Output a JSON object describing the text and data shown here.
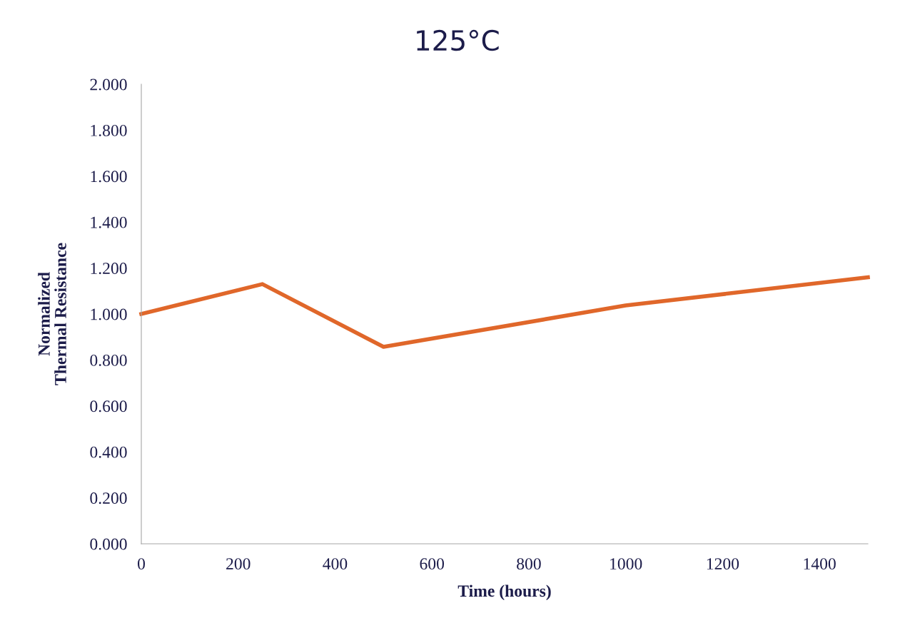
{
  "chart_data": {
    "type": "line",
    "title": "125°C",
    "xlabel": "Time (hours)",
    "ylabel": "Normalized\nThermal Resistance",
    "x": [
      0,
      250,
      500,
      1000,
      1500
    ],
    "series": [
      {
        "color": "#e0672a",
        "values": [
          1.0,
          1.13,
          0.857,
          1.037,
          1.16
        ]
      }
    ],
    "xlim": [
      0,
      1500
    ],
    "xticks": [
      0,
      200,
      400,
      600,
      800,
      1000,
      1200,
      1400
    ],
    "ylim": [
      0,
      2
    ],
    "yticks": [
      {
        "value": 0,
        "label": "0.000"
      },
      {
        "value": 0.2,
        "label": "0.200"
      },
      {
        "value": 0.4,
        "label": "0.400"
      },
      {
        "value": 0.6,
        "label": "0.600"
      },
      {
        "value": 0.8,
        "label": "0.800"
      },
      {
        "value": 1.0,
        "label": "1.000"
      },
      {
        "value": 1.2,
        "label": "1.200"
      },
      {
        "value": 1.4,
        "label": "1.400"
      },
      {
        "value": 1.6,
        "label": "1.600"
      },
      {
        "value": 1.8,
        "label": "1.800"
      },
      {
        "value": 2.0,
        "label": "2.000"
      }
    ],
    "grid": false,
    "legend": false,
    "marker": "none",
    "line_style": "solid"
  }
}
